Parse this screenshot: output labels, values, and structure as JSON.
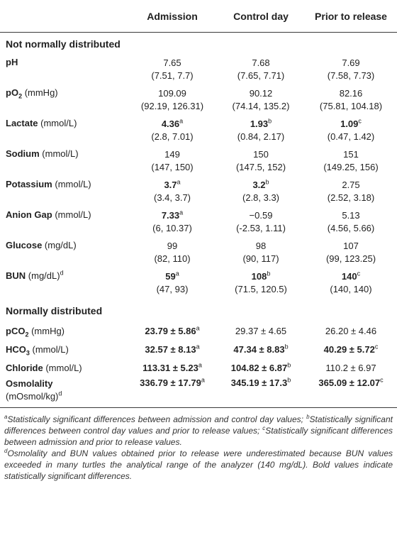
{
  "header": {
    "col0": "",
    "col1": "Admission",
    "col2": "Control day",
    "col3": "Prior to release"
  },
  "sections": {
    "not_normal": "Not normally distributed",
    "normal": "Normally distributed"
  },
  "rows": {
    "ph": {
      "label": "pH",
      "unit": "",
      "a": "7.65",
      "a_ci": "(7.51, 7.7)",
      "c": "7.68",
      "c_ci": "(7.65, 7.71)",
      "p": "7.69",
      "p_ci": "(7.58, 7.73)"
    },
    "po2": {
      "label_pre": "pO",
      "label_sub": "2",
      "unit": " (mmHg)",
      "a": "109.09",
      "a_ci": "(92.19, 126.31)",
      "c": "90.12",
      "c_ci": "(74.14, 135.2)",
      "p": "82.16",
      "p_ci": "(75.81, 104.18)"
    },
    "lactate": {
      "label": "Lactate",
      "unit": " (mmol/L)",
      "a": "4.36",
      "a_sup": "a",
      "a_ci": "(2.8, 7.01)",
      "c": "1.93",
      "c_sup": "b",
      "c_ci": "(0.84, 2.17)",
      "p": "1.09",
      "p_sup": "c",
      "p_ci": "(0.47, 1.42)"
    },
    "sodium": {
      "label": "Sodium",
      "unit": " (mmol/L)",
      "a": "149",
      "a_ci": "(147, 150)",
      "c": "150",
      "c_ci": "(147.5, 152)",
      "p": "151",
      "p_ci": "(149.25, 156)"
    },
    "potassium": {
      "label": "Potassium",
      "unit": " (mmol/L)",
      "a": "3.7",
      "a_sup": "a",
      "a_ci": "(3.4, 3.7)",
      "c": "3.2",
      "c_sup": "b",
      "c_ci": "(2.8, 3.3)",
      "p": "2.75",
      "p_ci": "(2.52, 3.18)"
    },
    "anion": {
      "label": "Anion Gap",
      "unit": " (mmol/L)",
      "a": "7.33",
      "a_sup": "a",
      "a_ci": "(6, 10.37)",
      "c": "−0.59",
      "c_ci": "(-2.53, 1.11)",
      "p": "5.13",
      "p_ci": "(4.56, 5.66)"
    },
    "glucose": {
      "label": "Glucose",
      "unit": " (mg/dL)",
      "a": "99",
      "a_ci": "(82, 110)",
      "c": "98",
      "c_ci": "(90, 117)",
      "p": "107",
      "p_ci": "(99, 123.25)"
    },
    "bun": {
      "label": "BUN",
      "unit": " (mg/dL)",
      "unit_sup": "d",
      "a": "59",
      "a_sup": "a",
      "a_ci": "(47, 93)",
      "c": "108",
      "c_sup": "b",
      "c_ci": "(71.5, 120.5)",
      "p": "140",
      "p_sup": "c",
      "p_ci": "(140, 140)"
    },
    "pco2": {
      "label_pre": "pCO",
      "label_sub": "2",
      "unit": " (mmHg)",
      "a": "23.79 ± 5.86",
      "a_sup": "a",
      "c": "29.37 ± 4.65",
      "p": "26.20 ± 4.46"
    },
    "hco3": {
      "label_pre": "HCO",
      "label_sub": "3",
      "unit": " (mmol/L)",
      "a": "32.57 ± 8.13",
      "a_sup": "a",
      "c": "47.34 ± 8.83",
      "c_sup": "b",
      "p": "40.29 ± 5.72",
      "p_sup": "c"
    },
    "chloride": {
      "label": "Chloride",
      "unit": " (mmol/L)",
      "a": "113.31 ± 5.23",
      "a_sup": "a",
      "c": "104.82 ± 6.87",
      "c_sup": "b",
      "p": "110.2 ± 6.97"
    },
    "osmolality": {
      "label": "Osmolality",
      "unit2": "(mOsmol/kg)",
      "unit2_sup": "d",
      "a": "336.79 ± 17.79",
      "a_sup": "a",
      "c": "345.19 ± 17.3",
      "c_sup": "b",
      "p": "365.09 ± 12.07",
      "p_sup": "c"
    }
  },
  "footnotes": {
    "a_mark": "a",
    "a_text": "Statistically significant differences between admission and control day values; ",
    "b_mark": "b",
    "b_text": "Statistically significant differences between control day values and prior to release values; ",
    "c_mark": "c",
    "c_text": "Statistically significant differences between admission and prior to release values.",
    "d_mark": "d",
    "d_text": "Osmolality and BUN values obtained prior to release were underestimated because BUN values exceeded in many turtles the analytical range of the analyzer (140 mg/dL). Bold values indicate statistically significant differences."
  }
}
